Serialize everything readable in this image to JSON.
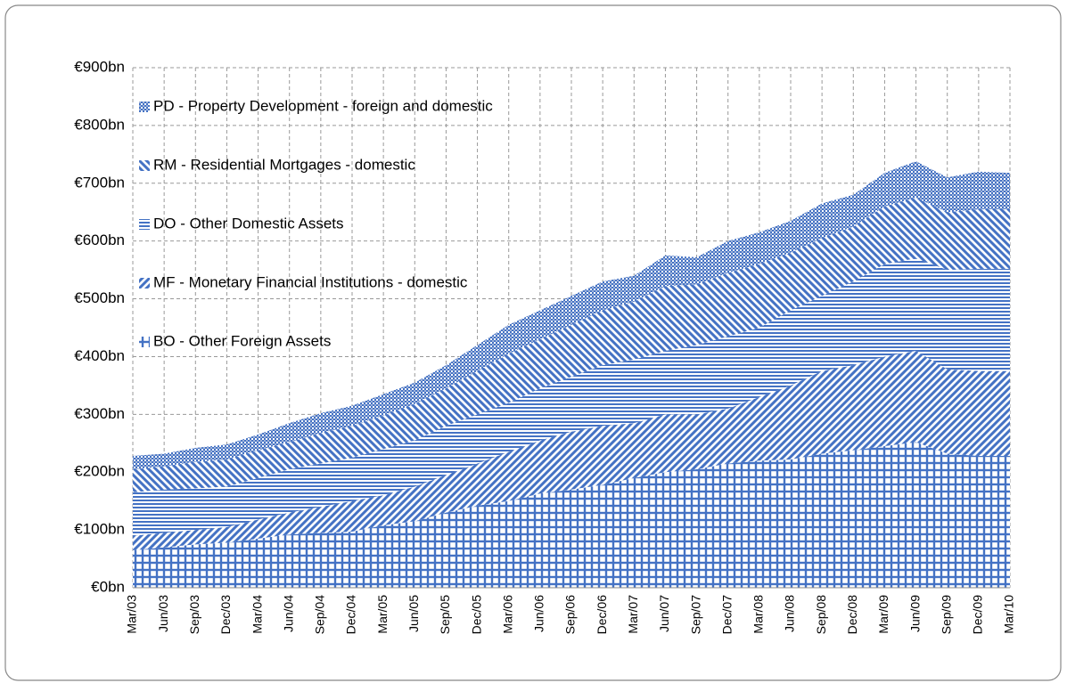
{
  "chart_data": {
    "type": "stacked-area",
    "categories": [
      "Mar/03",
      "Jun/03",
      "Sep/03",
      "Dec/03",
      "Mar/04",
      "Jun/04",
      "Sep/04",
      "Dec/04",
      "Mar/05",
      "Jun/05",
      "Sep/05",
      "Dec/05",
      "Mar/06",
      "Jun/06",
      "Sep/06",
      "Dec/06",
      "Mar/07",
      "Jun/07",
      "Sep/07",
      "Dec/07",
      "Mar/08",
      "Jun/08",
      "Sep/08",
      "Dec/08",
      "Mar/09",
      "Jun/09",
      "Sep/09",
      "Dec/09",
      "Mar/10"
    ],
    "series": [
      {
        "name": "PD - Property Development - foreign and domestic",
        "color": "#4472c4",
        "pattern": "dots",
        "values": [
          23,
          22,
          24,
          26,
          27,
          33,
          34,
          35,
          37,
          37,
          40,
          45,
          50,
          50,
          50,
          50,
          45,
          53,
          47,
          55,
          55,
          55,
          60,
          55,
          58,
          63,
          60,
          65,
          63
        ]
      },
      {
        "name": "RM - Residential Mortgages - domestic",
        "color": "#4472c4",
        "pattern": "backslash",
        "values": [
          40,
          40,
          46,
          47,
          48,
          47,
          53,
          55,
          58,
          63,
          65,
          75,
          85,
          85,
          90,
          95,
          100,
          112,
          105,
          110,
          110,
          100,
          100,
          95,
          100,
          105,
          100,
          103,
          103
        ]
      },
      {
        "name": "DO - Other Domestic Assets",
        "color": "#4472c4",
        "pattern": "horizontal",
        "values": [
          75,
          75,
          72,
          70,
          72,
          75,
          75,
          75,
          80,
          80,
          85,
          85,
          85,
          90,
          95,
          105,
          110,
          110,
          120,
          125,
          120,
          130,
          130,
          145,
          160,
          160,
          172,
          177,
          177
        ]
      },
      {
        "name": "MF - Monetary Financial Institutions - domestic",
        "color": "#4472c4",
        "pattern": "slash",
        "values": [
          25,
          25,
          25,
          27,
          33,
          38,
          45,
          53,
          52,
          60,
          65,
          73,
          85,
          92,
          100,
          102,
          95,
          100,
          95,
          95,
          110,
          128,
          143,
          147,
          155,
          158,
          146,
          147,
          147
        ]
      },
      {
        "name": "BO - Other Foreign Assets",
        "color": "#4472c4",
        "pattern": "grid",
        "values": [
          65,
          70,
          75,
          78,
          85,
          92,
          95,
          97,
          108,
          115,
          130,
          142,
          150,
          163,
          170,
          178,
          190,
          200,
          205,
          215,
          220,
          222,
          232,
          238,
          245,
          252,
          232,
          228,
          228
        ]
      }
    ],
    "ylim": [
      0,
      900
    ],
    "yticks": [
      {
        "value": 0,
        "label": "€0bn"
      },
      {
        "value": 100,
        "label": "€100bn"
      },
      {
        "value": 200,
        "label": "€200bn"
      },
      {
        "value": 300,
        "label": "€300bn"
      },
      {
        "value": 400,
        "label": "€400bn"
      },
      {
        "value": 500,
        "label": "€500bn"
      },
      {
        "value": 600,
        "label": "€600bn"
      },
      {
        "value": 700,
        "label": "€700bn"
      },
      {
        "value": 800,
        "label": "€800bn"
      },
      {
        "value": 900,
        "label": "€900bn"
      }
    ],
    "grid": true,
    "legend": "top-left"
  }
}
